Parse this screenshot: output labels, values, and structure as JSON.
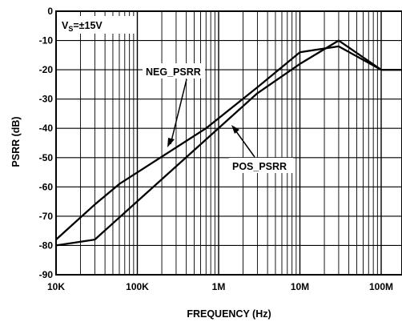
{
  "chart_data": {
    "type": "line",
    "xlabel": "FREQUENCY (Hz)",
    "ylabel": "PSRR (dB)",
    "x_scale": "log",
    "xlim": [
      10000,
      100000000
    ],
    "ylim": [
      -90,
      0
    ],
    "grid": true,
    "x_ticks": [
      10000,
      100000,
      1000000,
      10000000,
      100000000
    ],
    "x_tick_labels": [
      "10K",
      "100K",
      "1M",
      "10M",
      "100M"
    ],
    "y_ticks": [
      0,
      -10,
      -20,
      -30,
      -40,
      -50,
      -60,
      -70,
      -80,
      -90
    ],
    "y_tick_labels": [
      "0",
      "-10",
      "-20",
      "-30",
      "-40",
      "-50",
      "-60",
      "-70",
      "-80",
      "-90"
    ],
    "condition": {
      "prefix": "V",
      "subscript": "S",
      "suffix": "=±15V"
    },
    "series": [
      {
        "name": "NEG_PSRR",
        "x": [
          10000,
          30000,
          60000,
          700000,
          3000000,
          10000000,
          30000000,
          100000000,
          200000000
        ],
        "y": [
          -78,
          -66,
          -59,
          -40,
          -26,
          -14,
          -12,
          -20,
          -20
        ]
      },
      {
        "name": "POS_PSRR",
        "x": [
          10000,
          30000,
          3000000,
          10000000,
          30000000,
          100000000,
          200000000
        ],
        "y": [
          -80,
          -78,
          -28,
          -18,
          -10,
          -20,
          -20
        ]
      }
    ],
    "annotations": [
      {
        "text": "NEG_PSRR",
        "series": "NEG_PSRR"
      },
      {
        "text": "POS_PSRR",
        "series": "POS_PSRR"
      }
    ]
  }
}
